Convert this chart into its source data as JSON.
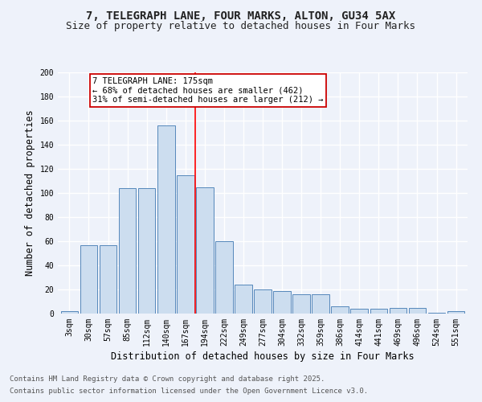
{
  "title_line1": "7, TELEGRAPH LANE, FOUR MARKS, ALTON, GU34 5AX",
  "title_line2": "Size of property relative to detached houses in Four Marks",
  "xlabel": "Distribution of detached houses by size in Four Marks",
  "ylabel": "Number of detached properties",
  "categories": [
    "3sqm",
    "30sqm",
    "57sqm",
    "85sqm",
    "112sqm",
    "140sqm",
    "167sqm",
    "194sqm",
    "222sqm",
    "249sqm",
    "277sqm",
    "304sqm",
    "332sqm",
    "359sqm",
    "386sqm",
    "414sqm",
    "441sqm",
    "469sqm",
    "496sqm",
    "524sqm",
    "551sqm"
  ],
  "values": [
    2,
    57,
    57,
    104,
    104,
    156,
    115,
    105,
    60,
    24,
    20,
    19,
    16,
    16,
    6,
    4,
    4,
    5,
    5,
    1,
    2
  ],
  "bar_color": "#ccddef",
  "bar_edge_color": "#5588bb",
  "red_line_index": 7,
  "annotation_text": "7 TELEGRAPH LANE: 175sqm\n← 68% of detached houses are smaller (462)\n31% of semi-detached houses are larger (212) →",
  "annotation_box_color": "#ffffff",
  "annotation_box_edge": "#cc0000",
  "ylim": [
    0,
    200
  ],
  "yticks": [
    0,
    20,
    40,
    60,
    80,
    100,
    120,
    140,
    160,
    180,
    200
  ],
  "footer_line1": "Contains HM Land Registry data © Crown copyright and database right 2025.",
  "footer_line2": "Contains public sector information licensed under the Open Government Licence v3.0.",
  "bg_color": "#eef2fa",
  "grid_color": "#ffffff",
  "title_fontsize": 10,
  "subtitle_fontsize": 9,
  "axis_label_fontsize": 8.5,
  "tick_fontsize": 7,
  "annotation_fontsize": 7.5,
  "footer_fontsize": 6.5
}
